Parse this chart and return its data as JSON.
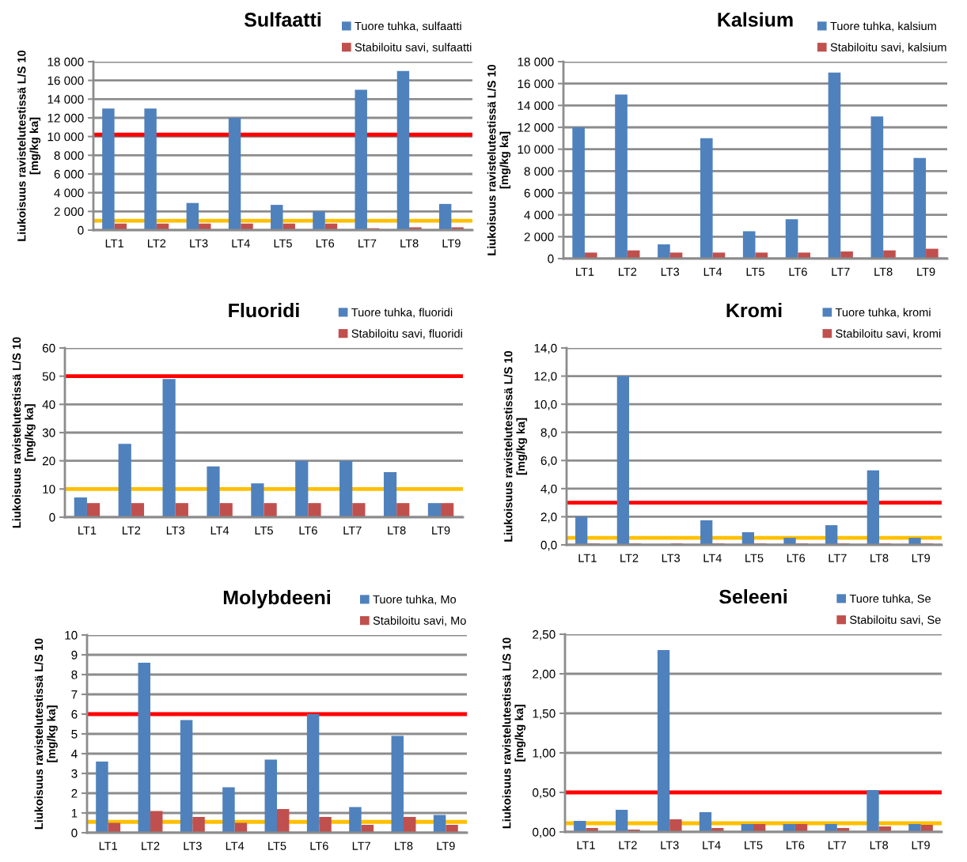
{
  "chart_data": [
    {
      "type": "bar",
      "title": "Sulfaatti",
      "ylabel": "Liukoisuus ravistelutestissä L/S 10\n[mg/kg ka]",
      "categories": [
        "LT1",
        "LT2",
        "LT3",
        "LT4",
        "LT5",
        "LT6",
        "LT7",
        "LT8",
        "LT9"
      ],
      "series": [
        {
          "name": "Tuore tuhka, sulfaatti",
          "color": "#4f81bd",
          "values": [
            13000,
            13000,
            2900,
            12000,
            2700,
            2000,
            15000,
            17000,
            2800
          ]
        },
        {
          "name": "Stabiloitu savi, sulfaatti",
          "color": "#c0504d",
          "values": [
            700,
            700,
            700,
            700,
            700,
            700,
            200,
            300,
            300
          ]
        }
      ],
      "ylim": [
        0,
        18000
      ],
      "yticks": [
        {
          "value": 0,
          "label": "0"
        },
        {
          "value": 2000,
          "label": "2 000"
        },
        {
          "value": 4000,
          "label": "4 000"
        },
        {
          "value": 6000,
          "label": "6 000"
        },
        {
          "value": 8000,
          "label": "8 000"
        },
        {
          "value": 10000,
          "label": "10 000"
        },
        {
          "value": 12000,
          "label": "12 000"
        },
        {
          "value": 14000,
          "label": "14 000"
        },
        {
          "value": 16000,
          "label": "16 000"
        },
        {
          "value": 18000,
          "label": "18 000"
        }
      ],
      "ref_lines": [
        {
          "axis": "y",
          "value": 10200,
          "color": "#ff0000"
        },
        {
          "axis": "y",
          "value": 1000,
          "color": "#ffc000"
        }
      ],
      "grid": "y",
      "legend": "top right"
    },
    {
      "type": "bar",
      "title": "Kalsium",
      "ylabel": "Liukoisuus ravistelutestissä L/S 10\n[mg/kg ka]",
      "categories": [
        "LT1",
        "LT2",
        "LT3",
        "LT4",
        "LT5",
        "LT6",
        "LT7",
        "LT8",
        "LT9"
      ],
      "series": [
        {
          "name": "Tuore tuhka, kalsium",
          "color": "#4f81bd",
          "values": [
            12000,
            15000,
            1300,
            11000,
            2500,
            3600,
            17000,
            13000,
            9200
          ]
        },
        {
          "name": "Stabiloitu savi, kalsium",
          "color": "#c0504d",
          "values": [
            550,
            750,
            550,
            550,
            550,
            550,
            650,
            750,
            900
          ]
        }
      ],
      "ylim": [
        0,
        18000
      ],
      "yticks": [
        {
          "value": 0,
          "label": "0"
        },
        {
          "value": 2000,
          "label": "2 000"
        },
        {
          "value": 4000,
          "label": "4 000"
        },
        {
          "value": 6000,
          "label": "6 000"
        },
        {
          "value": 8000,
          "label": "8 000"
        },
        {
          "value": 10000,
          "label": "10 000"
        },
        {
          "value": 12000,
          "label": "12 000"
        },
        {
          "value": 14000,
          "label": "14 000"
        },
        {
          "value": 16000,
          "label": "16 000"
        },
        {
          "value": 18000,
          "label": "18 000"
        }
      ],
      "grid": "y",
      "legend": "top right"
    },
    {
      "type": "bar",
      "title": "Fluoridi",
      "ylabel": "Liukoisuus ravistelutestissä L/S 10\n[mg/kg ka]",
      "categories": [
        "LT1",
        "LT2",
        "LT3",
        "LT4",
        "LT5",
        "LT6",
        "LT7",
        "LT8",
        "LT9"
      ],
      "series": [
        {
          "name": "Tuore tuhka, fluoridi",
          "color": "#4f81bd",
          "values": [
            7,
            26,
            49,
            18,
            12,
            20,
            20,
            16,
            5
          ]
        },
        {
          "name": "Stabiloitu savi, fluoridi",
          "color": "#c0504d",
          "values": [
            5,
            5,
            5,
            5,
            5,
            5,
            5,
            5,
            5
          ]
        }
      ],
      "ylim": [
        0,
        60
      ],
      "yticks": [
        0,
        10,
        20,
        30,
        40,
        50,
        60
      ],
      "ref_lines": [
        {
          "axis": "y",
          "value": 50,
          "color": "#ff0000"
        },
        {
          "axis": "y",
          "value": 10,
          "color": "#ffc000"
        }
      ],
      "grid": "y",
      "legend": "top right"
    },
    {
      "type": "bar",
      "title": "Kromi",
      "ylabel": "Liukoisuus ravistelutestissä L/S 10\n[mg/kg ka]",
      "categories": [
        "LT1",
        "LT2",
        "LT3",
        "LT4",
        "LT5",
        "LT6",
        "LT7",
        "LT8",
        "LT9"
      ],
      "series": [
        {
          "name": "Tuore tuhka, kromi",
          "color": "#4f81bd",
          "values": [
            2.0,
            12.0,
            0,
            1.75,
            0.9,
            0.5,
            1.4,
            5.3,
            0.5
          ]
        },
        {
          "name": "Stabiloitu savi, kromi",
          "color": "#c0504d",
          "values": [
            0.1,
            0.1,
            0.1,
            0.1,
            0.1,
            0.1,
            0.1,
            0.1,
            0.1
          ]
        }
      ],
      "ylim": [
        0,
        14
      ],
      "yticks": [
        {
          "value": 0,
          "label": "0,0"
        },
        {
          "value": 2,
          "label": "2,0"
        },
        {
          "value": 4,
          "label": "4,0"
        },
        {
          "value": 6,
          "label": "6,0"
        },
        {
          "value": 8,
          "label": "8,0"
        },
        {
          "value": 10,
          "label": "10,0"
        },
        {
          "value": 12,
          "label": "12,0"
        },
        {
          "value": 14,
          "label": "14,0"
        }
      ],
      "ref_lines": [
        {
          "axis": "y",
          "value": 3.0,
          "color": "#ff0000"
        },
        {
          "axis": "y",
          "value": 0.5,
          "color": "#ffc000"
        }
      ],
      "grid": "y",
      "legend": "top right"
    },
    {
      "type": "bar",
      "title": "Molybdeeni",
      "ylabel": "Liukoisuus ravistelutestissä L/S 10\n[mg/kg ka]",
      "categories": [
        "LT1",
        "LT2",
        "LT3",
        "LT4",
        "LT5",
        "LT6",
        "LT7",
        "LT8",
        "LT9"
      ],
      "series": [
        {
          "name": "Tuore tuhka, Mo",
          "color": "#4f81bd",
          "values": [
            3.6,
            8.6,
            5.7,
            2.3,
            3.7,
            6.0,
            1.3,
            4.9,
            0.9
          ]
        },
        {
          "name": "Stabiloitu savi, Mo",
          "color": "#c0504d",
          "values": [
            0.5,
            1.1,
            0.8,
            0.5,
            1.2,
            0.8,
            0.4,
            0.8,
            0.4
          ]
        }
      ],
      "ylim": [
        0,
        10
      ],
      "yticks": [
        0,
        1,
        2,
        3,
        4,
        5,
        6,
        7,
        8,
        9,
        10
      ],
      "ref_lines": [
        {
          "axis": "y",
          "value": 6,
          "color": "#ff0000"
        },
        {
          "axis": "y",
          "value": 0.55,
          "color": "#ffc000"
        }
      ],
      "grid": "y",
      "legend": "top right"
    },
    {
      "type": "bar",
      "title": "Seleeni",
      "ylabel": "Liukoisuus ravistelutestissä L/S 10\n[mg/kg ka]",
      "categories": [
        "LT1",
        "LT2",
        "LT3",
        "LT4",
        "LT5",
        "LT6",
        "LT7",
        "LT8",
        "LT9"
      ],
      "series": [
        {
          "name": "Tuore tuhka, Se",
          "color": "#4f81bd",
          "values": [
            0.14,
            0.28,
            2.3,
            0.25,
            0.1,
            0.1,
            0.1,
            0.53,
            0.1
          ]
        },
        {
          "name": "Stabiloitu savi, Se",
          "color": "#c0504d",
          "values": [
            0.05,
            0.03,
            0.16,
            0.05,
            0.1,
            0.1,
            0.05,
            0.07,
            0.09
          ]
        }
      ],
      "ylim": [
        0,
        2.5
      ],
      "yticks": [
        {
          "value": 0,
          "label": "0,00"
        },
        {
          "value": 0.5,
          "label": "0,50"
        },
        {
          "value": 1.0,
          "label": "1,00"
        },
        {
          "value": 1.5,
          "label": "1,50"
        },
        {
          "value": 2.0,
          "label": "2,00"
        },
        {
          "value": 2.5,
          "label": "2,50"
        }
      ],
      "ref_lines": [
        {
          "axis": "y",
          "value": 0.5,
          "color": "#ff0000"
        },
        {
          "axis": "y",
          "value": 0.11,
          "color": "#ffc000"
        }
      ],
      "grid": "y",
      "legend": "top right"
    }
  ]
}
